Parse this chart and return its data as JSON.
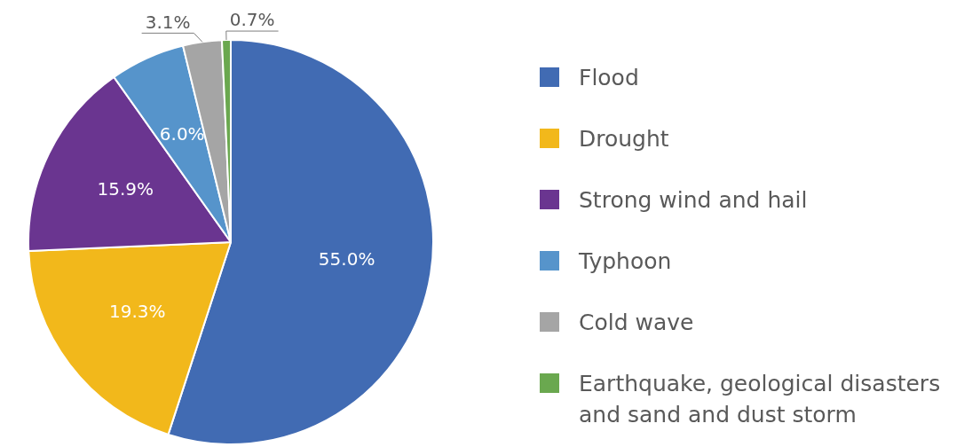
{
  "chart_data": {
    "type": "pie",
    "categories": [
      "Flood",
      "Drought",
      "Strong wind and hail",
      "Typhoon",
      "Cold wave",
      "Earthquake, geological disasters and sand and dust storm"
    ],
    "values": [
      55.0,
      19.3,
      15.9,
      6.0,
      3.1,
      0.7
    ],
    "value_labels": [
      "55.0%",
      "19.3%",
      "15.9%",
      "6.0%",
      "3.1%",
      "0.7%"
    ],
    "colors": [
      "#416bb3",
      "#f2b81b",
      "#6a3590",
      "#5694cb",
      "#a5a5a5",
      "#6aa84f"
    ],
    "legend": "right"
  }
}
